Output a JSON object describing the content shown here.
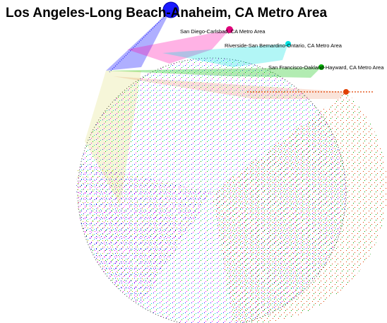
{
  "title": "Los Angeles-Long Beach-Anaheim, CA Metro Area",
  "nodes": [
    {
      "label": "San Diego-Carlsbad, CA Metro Area"
    },
    {
      "label": "Riverside-San Bernardino-Ontario, CA Metro Area"
    },
    {
      "label": "San Francisco-Oakland-Hayward, CA Metro Area"
    }
  ]
}
